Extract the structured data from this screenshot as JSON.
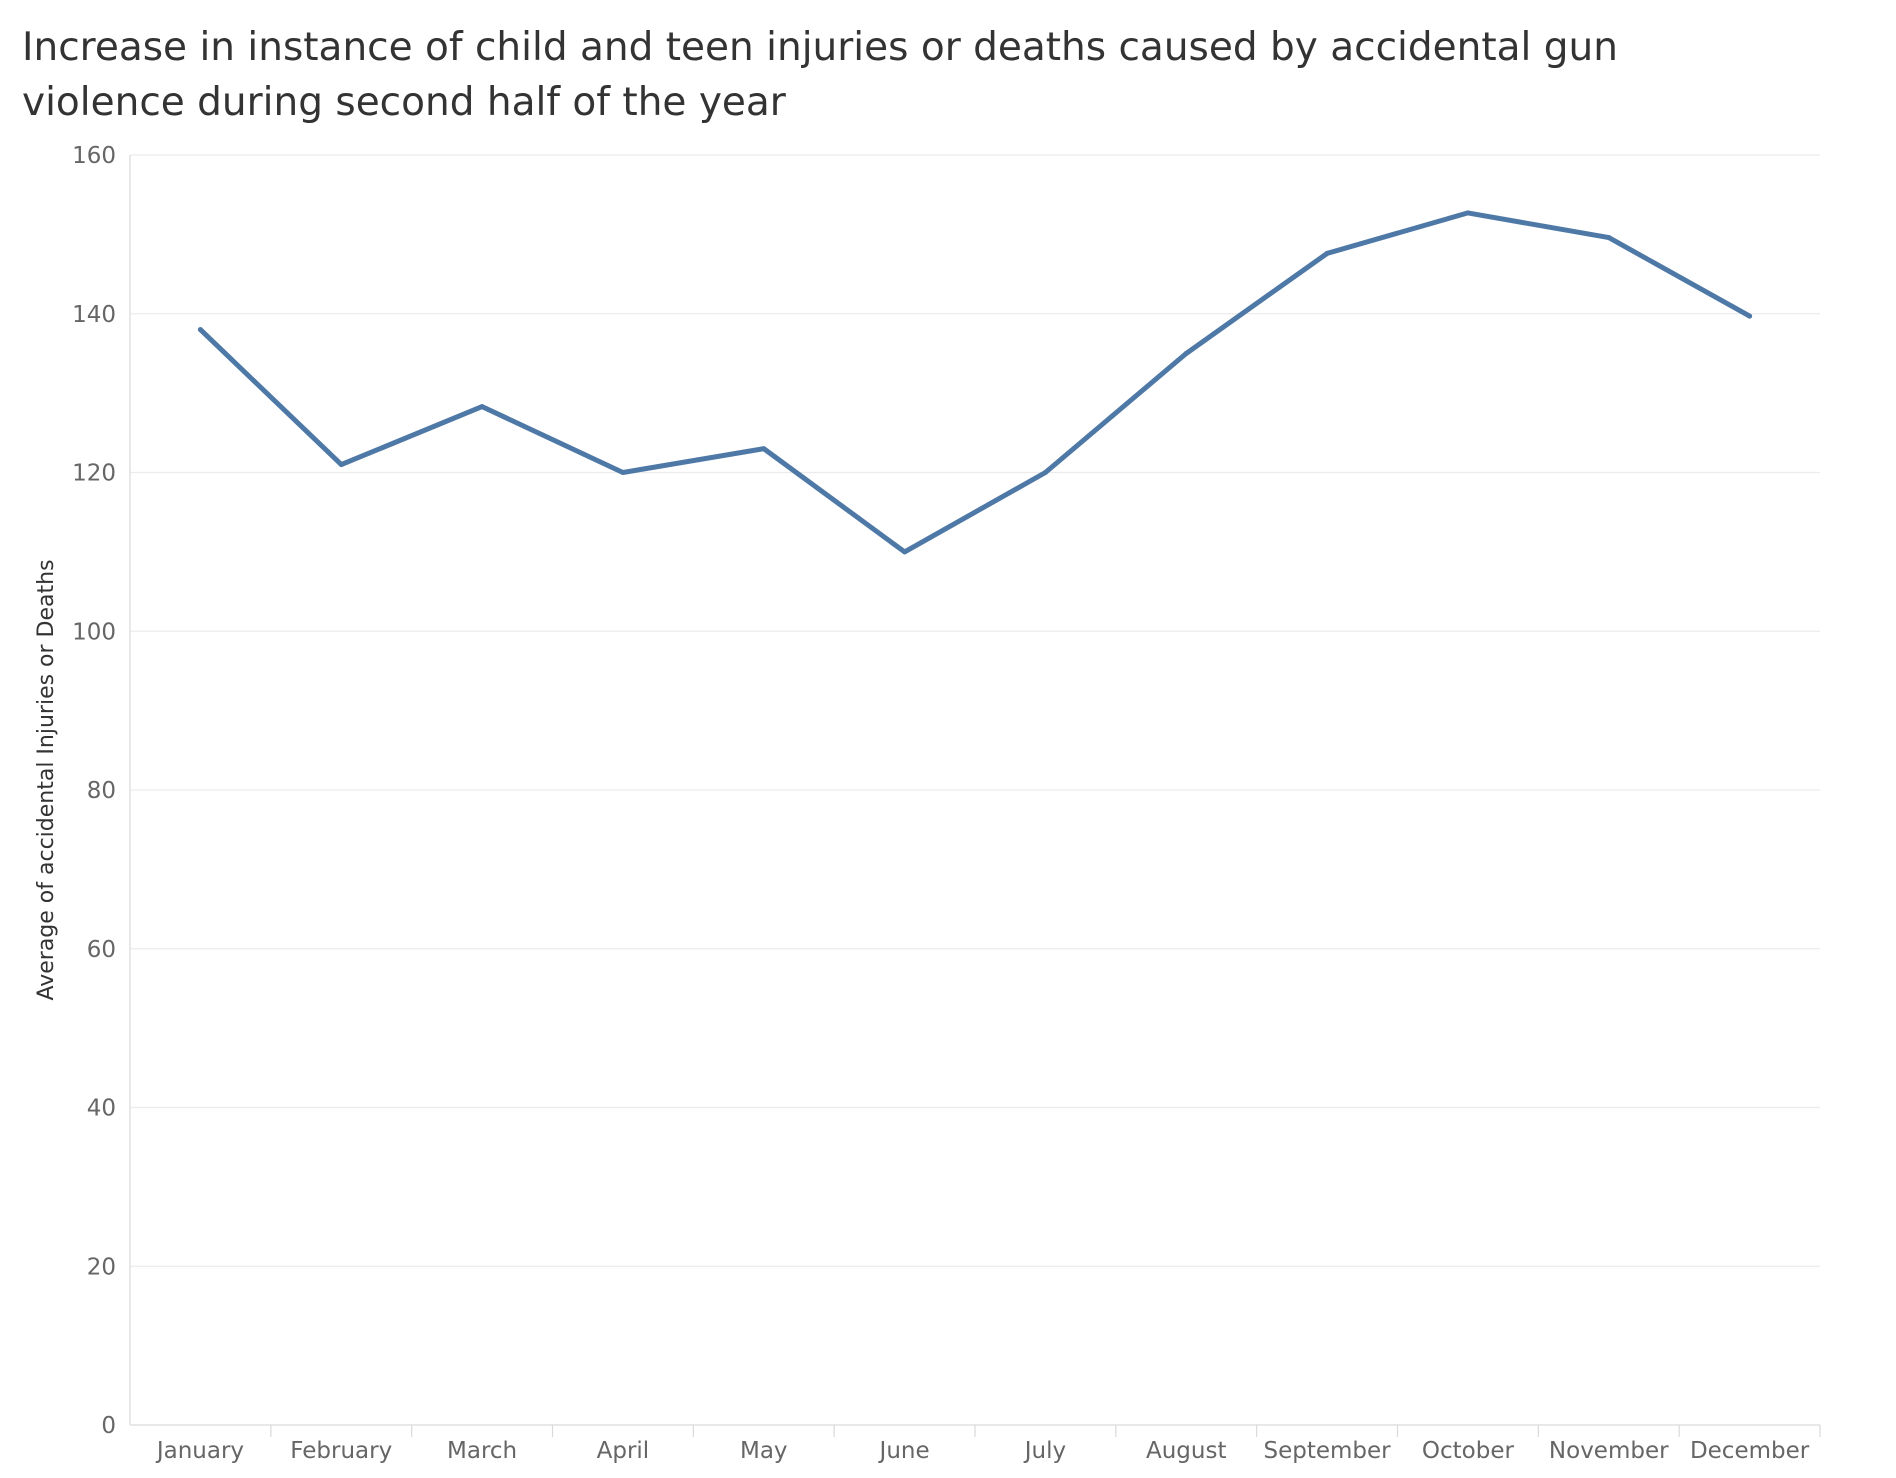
{
  "chart_data": {
    "type": "line",
    "title": "Increase in instance of child and teen injuries or deaths  caused by accidental gun violence during second half of the year",
    "xlabel": "",
    "ylabel": "Average of accidental Injuries or Deaths",
    "categories": [
      "January",
      "February",
      "March",
      "April",
      "May",
      "June",
      "July",
      "August",
      "September",
      "October",
      "November",
      "December"
    ],
    "series": [
      {
        "values": [
          138,
          121,
          128.3,
          120,
          123,
          110,
          120,
          135,
          147.6,
          152.7,
          149.6,
          139.7
        ]
      }
    ],
    "ylim": [
      0,
      160
    ],
    "yticks": [
      0,
      20,
      40,
      60,
      80,
      100,
      120,
      140,
      160
    ],
    "grid": true,
    "legend": "none",
    "colors": {
      "line": "#4e79a7",
      "grid": "#ececec",
      "axis": "#d9d9d9"
    }
  }
}
